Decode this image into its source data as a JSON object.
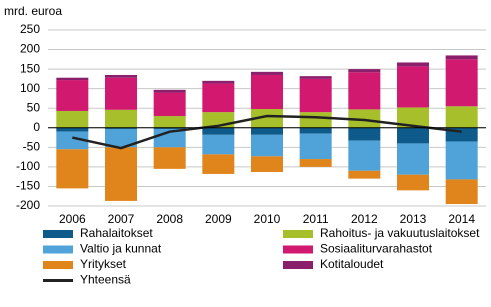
{
  "chart_data": {
    "type": "bar",
    "stacked": true,
    "y_label": "mrd. euroa",
    "categories": [
      "2006",
      "2007",
      "2008",
      "2009",
      "2010",
      "2011",
      "2012",
      "2013",
      "2014"
    ],
    "ylim": [
      -200,
      250
    ],
    "yticks": [
      -200,
      -150,
      -100,
      -50,
      0,
      50,
      100,
      150,
      200,
      250
    ],
    "grid": true,
    "series": [
      {
        "name": "Rahalaitokset",
        "color": "#0e5a8a",
        "values": [
          -10,
          -3,
          -3,
          -18,
          -18,
          -15,
          -33,
          -40,
          -35
        ]
      },
      {
        "name": "Rahoitus- ja vakuutuslaitokset",
        "color": "#a6bf2a",
        "values": [
          43,
          46,
          30,
          40,
          48,
          40,
          47,
          52,
          55
        ]
      },
      {
        "name": "Valtio ja kunnat",
        "color": "#4fa3d8",
        "values": [
          -45,
          -47,
          -47,
          -50,
          -55,
          -65,
          -77,
          -80,
          -97
        ]
      },
      {
        "name": "Sosiaaliturvarahastot",
        "color": "#d0196f",
        "values": [
          79,
          82,
          60,
          73,
          87,
          85,
          95,
          105,
          120
        ]
      },
      {
        "name": "Yritykset",
        "color": "#e0841c",
        "values": [
          -100,
          -137,
          -55,
          -50,
          -40,
          -20,
          -20,
          -40,
          -63
        ]
      },
      {
        "name": "Kotitaloudet",
        "color": "#8a1f6b",
        "values": [
          6,
          7,
          7,
          7,
          8,
          7,
          8,
          10,
          10
        ]
      },
      {
        "name": "Yhteensä",
        "type": "line",
        "color": "#222222",
        "values": [
          -25,
          -52,
          -10,
          5,
          30,
          27,
          20,
          5,
          -10
        ]
      }
    ]
  }
}
